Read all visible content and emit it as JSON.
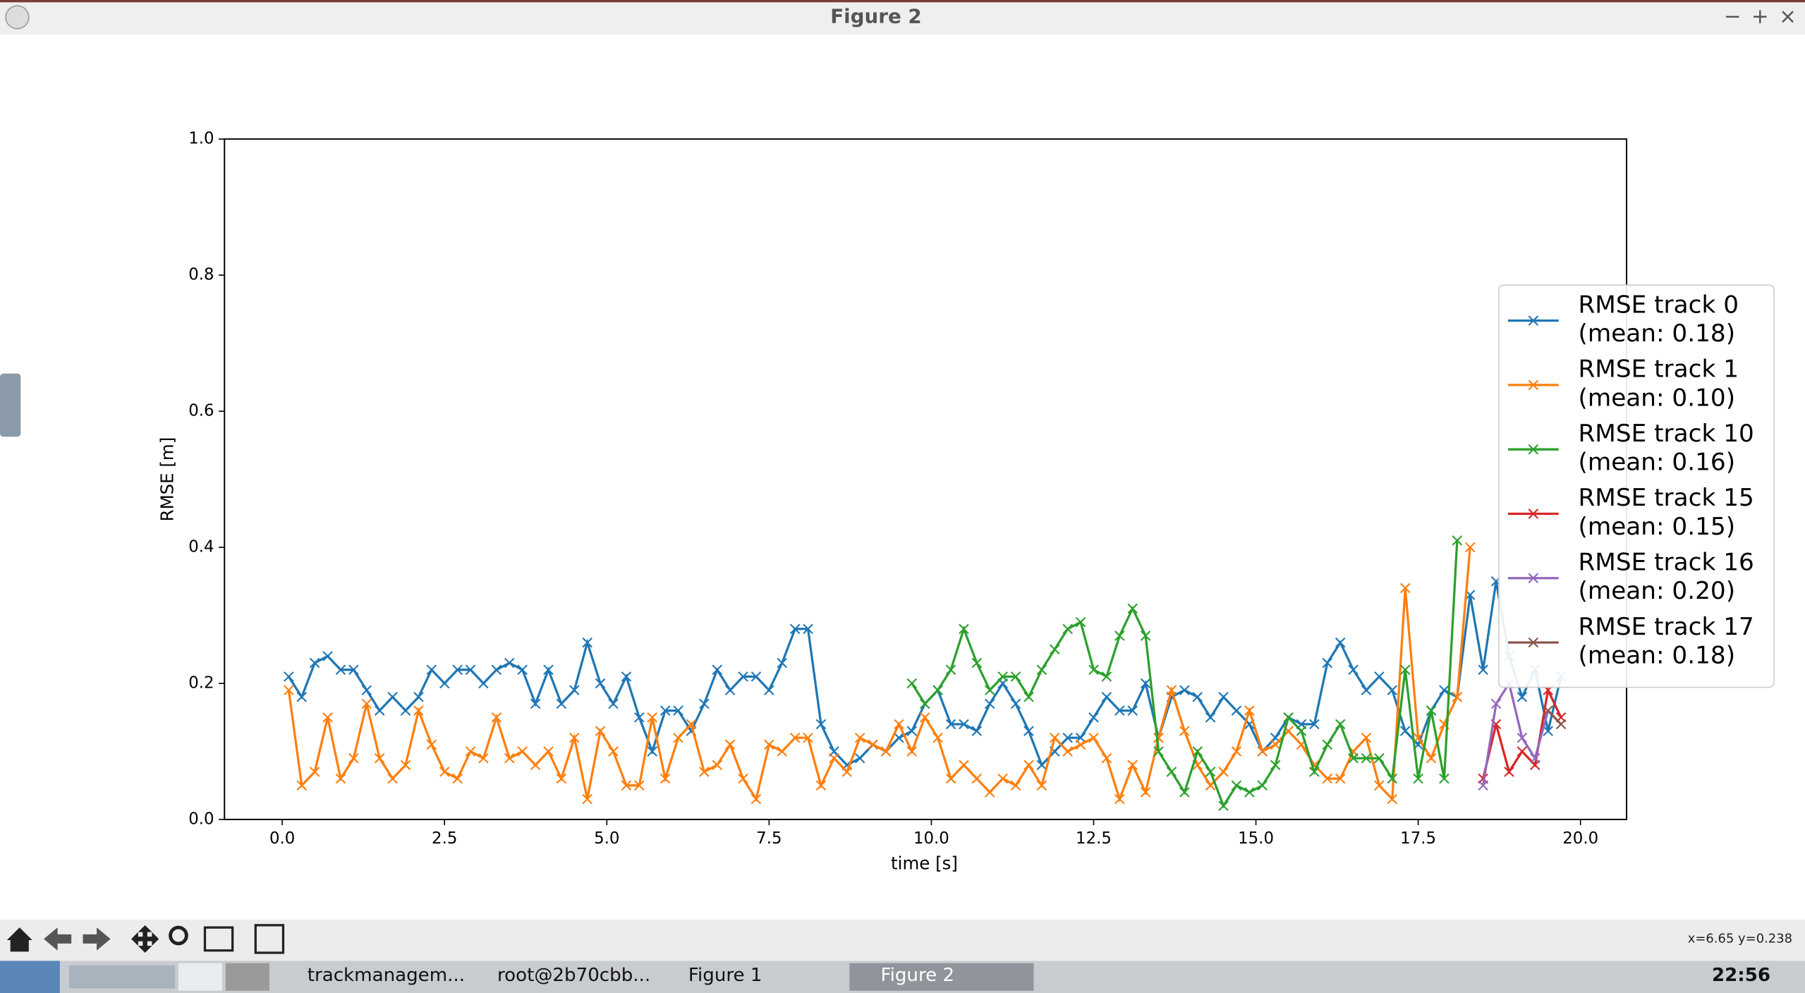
{
  "window": {
    "title": "Figure 2"
  },
  "status": "x=6.65 y=0.238",
  "taskbar": {
    "items": [
      "trackmanagem...",
      "root@2b70cbb...",
      "Figure 1",
      "Figure 2"
    ],
    "clock": "22:56"
  },
  "chart_data": {
    "type": "line",
    "x_label": "time [s]",
    "y_label": "RMSE [m]",
    "xlim": [
      -0.89,
      20.71
    ],
    "ylim": [
      0,
      1
    ],
    "xticks": [
      {
        "value": 0,
        "label": "0.0"
      },
      2.5,
      {
        "value": 5,
        "label": "5.0"
      },
      7.5,
      {
        "value": 10,
        "label": "10.0"
      },
      12.5,
      {
        "value": 15,
        "label": "15.0"
      },
      17.5,
      {
        "value": 20,
        "label": "20.0"
      }
    ],
    "yticks": [
      {
        "value": 0,
        "label": "0.0"
      },
      0.2,
      0.4,
      0.6,
      0.8,
      {
        "value": 1,
        "label": "1.0"
      }
    ],
    "legend": "right",
    "x": [
      0.1,
      0.3,
      0.5,
      0.7,
      0.9,
      1.1,
      1.3,
      1.5,
      1.7,
      1.9,
      2.1,
      2.3,
      2.5,
      2.7,
      2.9,
      3.1,
      3.3,
      3.5,
      3.7,
      3.9,
      4.1,
      4.3,
      4.5,
      4.7,
      4.9,
      5.1,
      5.3,
      5.5,
      5.7,
      5.9,
      6.1,
      6.3,
      6.5,
      6.7,
      6.9,
      7.1,
      7.3,
      7.5,
      7.7,
      7.9,
      8.1,
      8.3,
      8.5,
      8.7,
      8.9,
      9.1,
      9.3,
      9.5,
      9.7,
      9.9,
      10.1,
      10.3,
      10.5,
      10.7,
      10.9,
      11.1,
      11.3,
      11.5,
      11.7,
      11.9,
      12.1,
      12.3,
      12.5,
      12.7,
      12.9,
      13.1,
      13.3,
      13.5,
      13.7,
      13.9,
      14.1,
      14.3,
      14.5,
      14.7,
      14.9,
      15.1,
      15.3,
      15.5,
      15.7,
      15.9,
      16.1,
      16.3,
      16.5,
      16.7,
      16.9,
      17.1,
      17.3,
      17.5,
      17.7,
      17.9,
      18.1,
      18.3,
      18.5,
      18.7,
      18.9,
      19.1,
      19.3,
      19.5,
      19.7
    ],
    "series": [
      {
        "name": "RMSE track 0\n(mean: 0.18)",
        "color": "#1f77b4",
        "values": [
          0.21,
          0.18,
          0.23,
          0.24,
          0.22,
          0.22,
          0.19,
          0.16,
          0.18,
          0.16,
          0.18,
          0.22,
          0.2,
          0.22,
          0.22,
          0.2,
          0.22,
          0.23,
          0.22,
          0.17,
          0.22,
          0.17,
          0.19,
          0.26,
          0.2,
          0.17,
          0.21,
          0.15,
          0.1,
          0.16,
          0.16,
          0.13,
          0.17,
          0.22,
          0.19,
          0.21,
          0.21,
          0.19,
          0.23,
          0.28,
          0.28,
          0.14,
          0.1,
          0.08,
          0.09,
          0.11,
          0.1,
          0.12,
          0.13,
          0.17,
          0.19,
          0.14,
          0.14,
          0.13,
          0.17,
          0.2,
          0.17,
          0.13,
          0.08,
          0.1,
          0.12,
          0.12,
          0.15,
          0.18,
          0.16,
          0.16,
          0.2,
          0.12,
          0.18,
          0.19,
          0.18,
          0.15,
          0.18,
          0.16,
          0.14,
          0.1,
          0.12,
          0.15,
          0.14,
          0.14,
          0.23,
          0.26,
          0.22,
          0.19,
          0.21,
          0.19,
          0.13,
          0.11,
          0.16,
          0.19,
          0.18,
          0.33,
          0.22,
          0.35,
          0.24,
          0.18,
          0.22,
          0.13,
          0.21
        ]
      },
      {
        "name": "RMSE track 1\n(mean: 0.10)",
        "color": "#ff7f0e",
        "values": [
          0.19,
          0.05,
          0.07,
          0.15,
          0.06,
          0.09,
          0.17,
          0.09,
          0.06,
          0.08,
          0.16,
          0.11,
          0.07,
          0.06,
          0.1,
          0.09,
          0.15,
          0.09,
          0.1,
          0.08,
          0.1,
          0.06,
          0.12,
          0.03,
          0.13,
          0.1,
          0.05,
          0.05,
          0.15,
          0.06,
          0.12,
          0.14,
          0.07,
          0.08,
          0.11,
          0.06,
          0.03,
          0.11,
          0.1,
          0.12,
          0.12,
          0.05,
          0.09,
          0.07,
          0.12,
          0.11,
          0.1,
          0.14,
          0.1,
          0.15,
          0.12,
          0.06,
          0.08,
          0.06,
          0.04,
          0.06,
          0.05,
          0.08,
          0.05,
          0.12,
          0.1,
          0.11,
          0.12,
          0.09,
          0.03,
          0.08,
          0.04,
          0.12,
          0.19,
          0.13,
          0.08,
          0.05,
          0.07,
          0.1,
          0.16,
          0.1,
          0.11,
          0.13,
          0.11,
          0.08,
          0.06,
          0.06,
          0.1,
          0.12,
          0.05,
          0.03,
          0.34,
          0.12,
          0.09,
          0.14,
          0.18,
          0.4,
          null,
          null,
          null,
          null,
          null,
          null,
          null
        ]
      },
      {
        "name": "RMSE track 10\n(mean: 0.16)",
        "color": "#2ca02c",
        "values": [
          null,
          null,
          null,
          null,
          null,
          null,
          null,
          null,
          null,
          null,
          null,
          null,
          null,
          null,
          null,
          null,
          null,
          null,
          null,
          null,
          null,
          null,
          null,
          null,
          null,
          null,
          null,
          null,
          null,
          null,
          null,
          null,
          null,
          null,
          null,
          null,
          null,
          null,
          null,
          null,
          null,
          null,
          null,
          null,
          null,
          null,
          null,
          null,
          0.2,
          0.17,
          0.19,
          0.22,
          0.28,
          0.23,
          0.19,
          0.21,
          0.21,
          0.18,
          0.22,
          0.25,
          0.28,
          0.29,
          0.22,
          0.21,
          0.27,
          0.31,
          0.27,
          0.1,
          0.07,
          0.04,
          0.1,
          0.07,
          0.02,
          0.05,
          0.04,
          0.05,
          0.08,
          0.15,
          0.13,
          0.07,
          0.11,
          0.14,
          0.09,
          0.09,
          0.09,
          0.06,
          0.22,
          0.06,
          0.16,
          0.06,
          0.41,
          null,
          null,
          null,
          null,
          null,
          null,
          null,
          null
        ]
      },
      {
        "name": "RMSE track 15\n(mean: 0.15)",
        "color": "#d62728",
        "values": [
          null,
          null,
          null,
          null,
          null,
          null,
          null,
          null,
          null,
          null,
          null,
          null,
          null,
          null,
          null,
          null,
          null,
          null,
          null,
          null,
          null,
          null,
          null,
          null,
          null,
          null,
          null,
          null,
          null,
          null,
          null,
          null,
          null,
          null,
          null,
          null,
          null,
          null,
          null,
          null,
          null,
          null,
          null,
          null,
          null,
          null,
          null,
          null,
          null,
          null,
          null,
          null,
          null,
          null,
          null,
          null,
          null,
          null,
          null,
          null,
          null,
          null,
          null,
          null,
          null,
          null,
          null,
          null,
          null,
          null,
          null,
          null,
          null,
          null,
          null,
          null,
          null,
          null,
          null,
          null,
          null,
          null,
          null,
          null,
          null,
          null,
          null,
          null,
          null,
          null,
          null,
          null,
          0.06,
          0.14,
          0.07,
          0.1,
          0.08,
          0.19,
          0.15
        ]
      },
      {
        "name": "RMSE track 16\n(mean: 0.20)",
        "color": "#9467bd",
        "values": [
          null,
          null,
          null,
          null,
          null,
          null,
          null,
          null,
          null,
          null,
          null,
          null,
          null,
          null,
          null,
          null,
          null,
          null,
          null,
          null,
          null,
          null,
          null,
          null,
          null,
          null,
          null,
          null,
          null,
          null,
          null,
          null,
          null,
          null,
          null,
          null,
          null,
          null,
          null,
          null,
          null,
          null,
          null,
          null,
          null,
          null,
          null,
          null,
          null,
          null,
          null,
          null,
          null,
          null,
          null,
          null,
          null,
          null,
          null,
          null,
          null,
          null,
          null,
          null,
          null,
          null,
          null,
          null,
          null,
          null,
          null,
          null,
          null,
          null,
          null,
          null,
          null,
          null,
          null,
          null,
          null,
          null,
          null,
          null,
          null,
          null,
          null,
          null,
          null,
          null,
          null,
          null,
          0.05,
          0.17,
          0.2,
          0.12,
          0.09,
          0.16,
          null
        ]
      },
      {
        "name": "RMSE track 17\n(mean: 0.18)",
        "color": "#8c564b",
        "values": [
          null,
          null,
          null,
          null,
          null,
          null,
          null,
          null,
          null,
          null,
          null,
          null,
          null,
          null,
          null,
          null,
          null,
          null,
          null,
          null,
          null,
          null,
          null,
          null,
          null,
          null,
          null,
          null,
          null,
          null,
          null,
          null,
          null,
          null,
          null,
          null,
          null,
          null,
          null,
          null,
          null,
          null,
          null,
          null,
          null,
          null,
          null,
          null,
          null,
          null,
          null,
          null,
          null,
          null,
          null,
          null,
          null,
          null,
          null,
          null,
          null,
          null,
          null,
          null,
          null,
          null,
          null,
          null,
          null,
          null,
          null,
          null,
          null,
          null,
          null,
          null,
          null,
          null,
          null,
          null,
          null,
          null,
          null,
          null,
          null,
          null,
          null,
          null,
          null,
          null,
          null,
          null,
          null,
          null,
          null,
          null,
          null,
          0.16,
          0.14
        ]
      }
    ]
  }
}
